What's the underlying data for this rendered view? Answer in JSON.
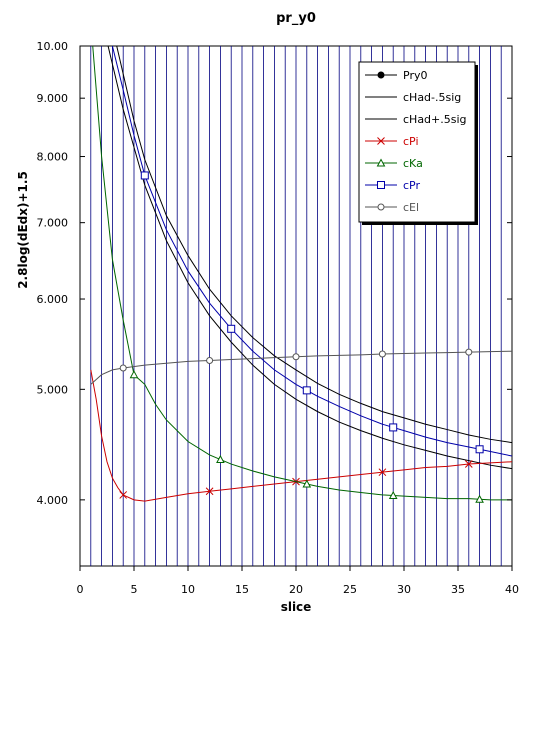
{
  "chart_data": {
    "type": "line",
    "title": "pr_y0",
    "xlabel": "slice",
    "ylabel": "2.8log(dEdx)+1.5",
    "xlim": [
      0,
      40
    ],
    "ylim": [
      3.5,
      10.0
    ],
    "yscale": "log",
    "x_ticks": [
      0,
      5,
      10,
      15,
      20,
      25,
      30,
      35,
      40
    ],
    "y_ticks": [
      4.0,
      5.0,
      6.0,
      7.0,
      8.0,
      9.0,
      10.0
    ],
    "y_tick_labels": [
      "4.000",
      "5.000",
      "6.000",
      "7.000",
      "8.000",
      "9.000",
      "10.00"
    ],
    "grid": "vertical lines at every slice",
    "legend_position": "top-right",
    "series": [
      {
        "name": "Pry0",
        "color": "#000000",
        "marker": "filled-circle",
        "x": [],
        "y": []
      },
      {
        "name": "cHad-.5sig",
        "color": "#000000",
        "marker": "none",
        "x": [
          2.6,
          4,
          6,
          8,
          10,
          12,
          14,
          16,
          18,
          20,
          22,
          24,
          26,
          28,
          30,
          32,
          34,
          36,
          38,
          40
        ],
        "y": [
          10.0,
          8.8,
          7.55,
          6.75,
          6.2,
          5.8,
          5.5,
          5.25,
          5.05,
          4.9,
          4.78,
          4.68,
          4.6,
          4.53,
          4.47,
          4.42,
          4.37,
          4.33,
          4.29,
          4.26
        ]
      },
      {
        "name": "cHad+.5sig",
        "color": "#000000",
        "marker": "none",
        "x": [
          3.4,
          5,
          6,
          8,
          10,
          12,
          14,
          16,
          18,
          20,
          22,
          24,
          26,
          28,
          30,
          32,
          34,
          36,
          38,
          40
        ],
        "y": [
          10.0,
          8.6,
          7.95,
          7.1,
          6.55,
          6.12,
          5.8,
          5.55,
          5.35,
          5.2,
          5.06,
          4.95,
          4.86,
          4.78,
          4.72,
          4.66,
          4.61,
          4.56,
          4.52,
          4.49
        ]
      },
      {
        "name": "cPi",
        "color": "#cc0000",
        "marker": "x",
        "x": [
          1,
          1.5,
          2,
          2.5,
          3,
          3.5,
          4,
          5,
          6,
          8,
          10,
          12,
          14,
          16,
          18,
          20,
          22,
          24,
          26,
          28,
          30,
          32,
          34,
          36,
          38,
          40
        ],
        "y": [
          5.2,
          4.9,
          4.55,
          4.32,
          4.18,
          4.1,
          4.04,
          4.0,
          3.99,
          4.02,
          4.05,
          4.07,
          4.09,
          4.11,
          4.13,
          4.15,
          4.17,
          4.19,
          4.21,
          4.23,
          4.25,
          4.27,
          4.28,
          4.3,
          4.31,
          4.32
        ],
        "markers_x": [
          4,
          12,
          20,
          28,
          36
        ]
      },
      {
        "name": "cKa",
        "color": "#006600",
        "marker": "triangle",
        "x": [
          1,
          2,
          3,
          4,
          5,
          6,
          7,
          8,
          10,
          12,
          14,
          16,
          18,
          20,
          22,
          24,
          26,
          28,
          30,
          32,
          34,
          36,
          38,
          40
        ],
        "y": [
          10.5,
          8.0,
          6.5,
          5.75,
          5.15,
          5.05,
          4.85,
          4.7,
          4.5,
          4.38,
          4.3,
          4.24,
          4.19,
          4.15,
          4.11,
          4.08,
          4.06,
          4.04,
          4.03,
          4.02,
          4.01,
          4.01,
          4.0,
          4.0
        ],
        "markers_x": [
          5,
          13,
          21,
          29,
          37
        ]
      },
      {
        "name": "cPr",
        "color": "#0000aa",
        "marker": "square",
        "x": [
          3,
          4,
          5,
          6,
          8,
          10,
          12,
          14,
          16,
          18,
          20,
          22,
          24,
          26,
          28,
          30,
          32,
          34,
          36,
          38,
          40
        ],
        "y": [
          10.0,
          9.15,
          8.35,
          7.7,
          6.9,
          6.35,
          5.95,
          5.65,
          5.4,
          5.2,
          5.05,
          4.93,
          4.83,
          4.74,
          4.66,
          4.6,
          4.54,
          4.49,
          4.45,
          4.41,
          4.37
        ],
        "markers_x": [
          6,
          14,
          21,
          29,
          37
        ]
      },
      {
        "name": "cEl",
        "color": "#555555",
        "marker": "circle",
        "x": [
          1,
          1.5,
          2,
          3,
          4,
          6,
          8,
          10,
          12,
          14,
          16,
          18,
          20,
          22,
          24,
          26,
          28,
          30,
          32,
          34,
          36,
          38,
          40
        ],
        "y": [
          5.05,
          5.1,
          5.15,
          5.2,
          5.22,
          5.25,
          5.27,
          5.29,
          5.3,
          5.31,
          5.32,
          5.33,
          5.34,
          5.35,
          5.355,
          5.36,
          5.37,
          5.375,
          5.38,
          5.385,
          5.39,
          5.395,
          5.4
        ],
        "markers_x": [
          4,
          12,
          20,
          28,
          36
        ]
      }
    ]
  }
}
